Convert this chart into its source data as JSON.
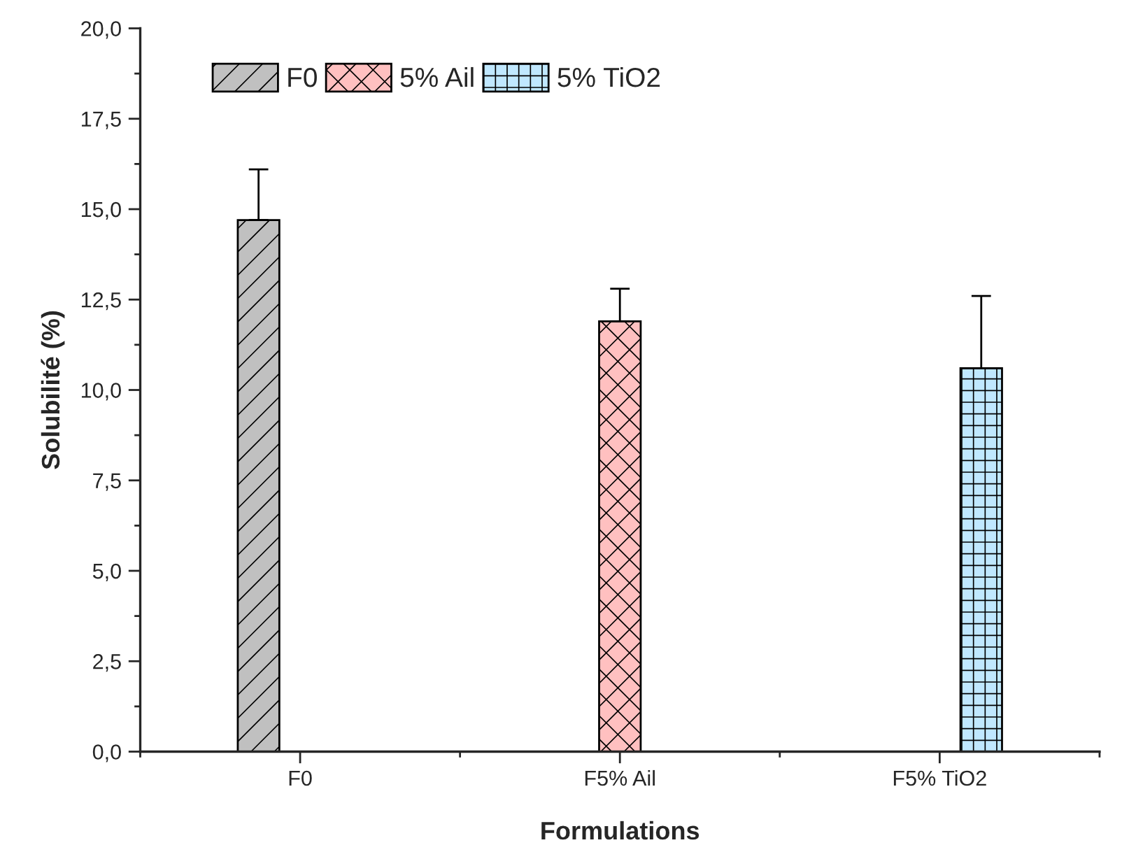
{
  "chart_data": {
    "type": "bar",
    "xlabel": "Formulations",
    "ylabel": "Solubilité (%)",
    "categories": [
      "F0",
      "F5% Ail",
      "F5% TiO2"
    ],
    "series": [
      {
        "name": "F0",
        "color": "#c0c0c0",
        "values": [
          14.7,
          null,
          null
        ],
        "errors": [
          1.4,
          null,
          null
        ]
      },
      {
        "name": "5% Ail",
        "color": "#ffc0c0",
        "values": [
          null,
          11.9,
          null
        ],
        "errors": [
          null,
          0.9,
          null
        ]
      },
      {
        "name": "5% TiO2",
        "color": "#c0e8ff",
        "values": [
          null,
          null,
          10.6
        ],
        "errors": [
          null,
          null,
          2.0
        ]
      }
    ],
    "ylim": [
      0,
      20
    ],
    "yticks": [
      {
        "value": 0,
        "label": "0,0"
      },
      {
        "value": 2.5,
        "label": "2,5"
      },
      {
        "value": 5,
        "label": "5,0"
      },
      {
        "value": 7.5,
        "label": "7,5"
      },
      {
        "value": 10,
        "label": "10,0"
      },
      {
        "value": 12.5,
        "label": "12,5"
      },
      {
        "value": 15,
        "label": "15,0"
      },
      {
        "value": 17.5,
        "label": "17,5"
      },
      {
        "value": 20,
        "label": "20,0"
      }
    ],
    "legend": "top left",
    "grid": false
  }
}
